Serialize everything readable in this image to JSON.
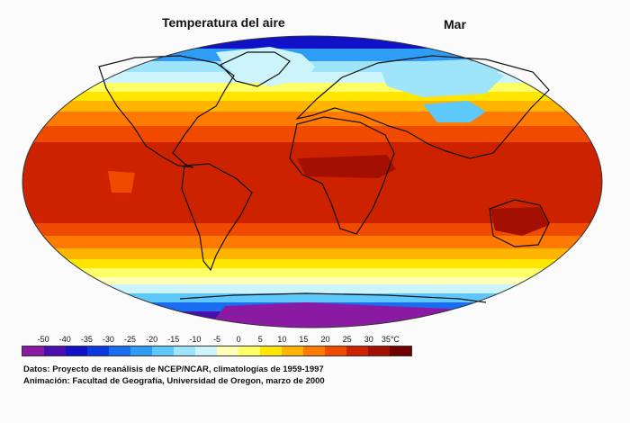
{
  "header": {
    "title": "Temperatura del aire",
    "month": "Mar"
  },
  "legend": {
    "tick_labels": [
      "-50",
      "-40",
      "-35",
      "-30",
      "-25",
      "-20",
      "-15",
      "-10",
      "-5",
      "0",
      "5",
      "10",
      "15",
      "20",
      "25",
      "30",
      "35°C"
    ],
    "colors": [
      "#8b1aa3",
      "#4b0fb0",
      "#1111c8",
      "#0a3ae0",
      "#1a6cf0",
      "#2f9df5",
      "#5fc8fb",
      "#9ee4fb",
      "#ccf4fa",
      "#ffffb8",
      "#ffff66",
      "#ffe600",
      "#ffb400",
      "#ff7a00",
      "#ef4a00",
      "#cc2200",
      "#a30f00",
      "#700000"
    ]
  },
  "credits": {
    "line1": "Datos: Proyecto de reanálisis de NCEP/NCAR, climatologías de 1959-1997",
    "line2": "Animación: Facultad de Geografía, Universidad de Oregon, marzo de 2000"
  }
}
